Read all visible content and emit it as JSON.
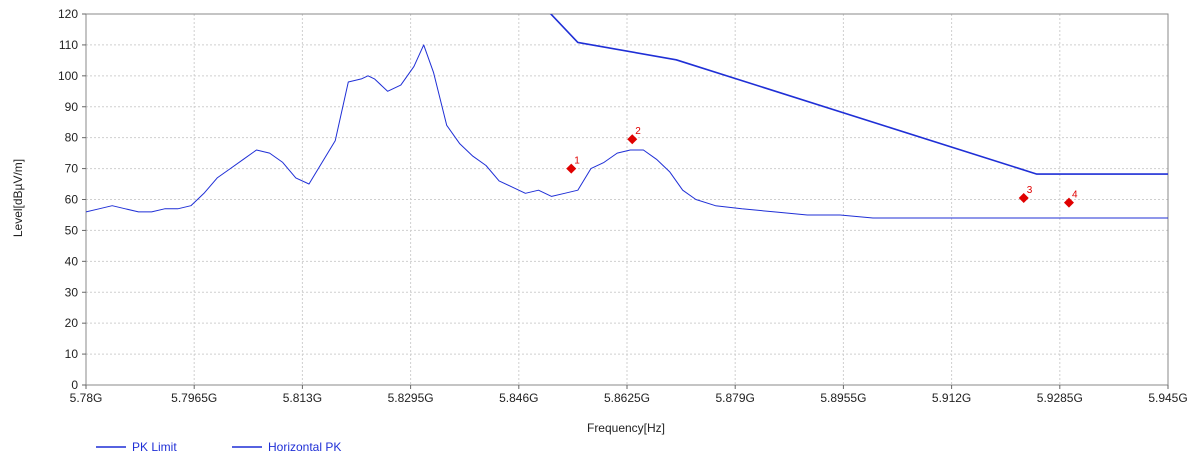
{
  "chart_data": {
    "type": "line",
    "title": "",
    "xlabel": "Frequency[Hz]",
    "ylabel": "Level[dBµV/m]",
    "xlim": [
      5.78,
      5.945
    ],
    "ylim": [
      0,
      120
    ],
    "grid": true,
    "x_ticks": [
      5.78,
      5.7965,
      5.813,
      5.8295,
      5.846,
      5.8625,
      5.879,
      5.8955,
      5.912,
      5.9285,
      5.945
    ],
    "x_tick_labels": [
      "5.78G",
      "5.7965G",
      "5.813G",
      "5.8295G",
      "5.846G",
      "5.8625G",
      "5.879G",
      "5.8955G",
      "5.912G",
      "5.9285G",
      "5.945G"
    ],
    "y_ticks": [
      0,
      10,
      20,
      30,
      40,
      50,
      60,
      70,
      80,
      90,
      100,
      110,
      120
    ],
    "y_tick_labels": [
      "0",
      "10",
      "20",
      "30",
      "40",
      "50",
      "60",
      "70",
      "80",
      "90",
      "100",
      "110",
      "120"
    ],
    "legend": {
      "position": "bottom-left",
      "entries": [
        {
          "label": "PK Limit",
          "color": "#1f2fd6"
        },
        {
          "label": "Horizontal PK",
          "color": "#1f2fd6"
        }
      ]
    },
    "series": [
      {
        "name": "PK Limit",
        "color": "#1f2fd6",
        "x": [
          5.85,
          5.855,
          5.87,
          5.925,
          5.945
        ],
        "y": [
          122,
          110.8,
          105.2,
          68.2,
          68.2
        ]
      },
      {
        "name": "Horizontal PK",
        "color": "#1f2fd6",
        "x": [
          5.78,
          5.782,
          5.784,
          5.786,
          5.788,
          5.79,
          5.792,
          5.794,
          5.796,
          5.798,
          5.8,
          5.802,
          5.804,
          5.806,
          5.808,
          5.81,
          5.812,
          5.814,
          5.816,
          5.818,
          5.82,
          5.822,
          5.823,
          5.824,
          5.826,
          5.828,
          5.83,
          5.8315,
          5.833,
          5.835,
          5.837,
          5.839,
          5.841,
          5.843,
          5.845,
          5.847,
          5.849,
          5.851,
          5.853,
          5.855,
          5.857,
          5.859,
          5.861,
          5.863,
          5.865,
          5.867,
          5.869,
          5.871,
          5.873,
          5.876,
          5.88,
          5.885,
          5.89,
          5.895,
          5.9,
          5.905,
          5.91,
          5.915,
          5.92,
          5.925,
          5.93,
          5.935,
          5.94,
          5.945
        ],
        "y": [
          56,
          57,
          58,
          57,
          56,
          56,
          57,
          57,
          58,
          62,
          67,
          70,
          73,
          76,
          75,
          72,
          67,
          65,
          72,
          79,
          98,
          99,
          100,
          99,
          95,
          97,
          103,
          110,
          101,
          84,
          78,
          74,
          71,
          66,
          64,
          62,
          63,
          61,
          62,
          63,
          70,
          72,
          75,
          76,
          76,
          73,
          69,
          63,
          60,
          58,
          57,
          56,
          55,
          55,
          54,
          54,
          54,
          54,
          54,
          54,
          54,
          54,
          54,
          54
        ]
      }
    ],
    "markers": [
      {
        "label": "1",
        "x": 5.854,
        "y": 70
      },
      {
        "label": "2",
        "x": 5.8633,
        "y": 79.5
      },
      {
        "label": "3",
        "x": 5.923,
        "y": 60.5
      },
      {
        "label": "4",
        "x": 5.9299,
        "y": 59
      }
    ]
  }
}
